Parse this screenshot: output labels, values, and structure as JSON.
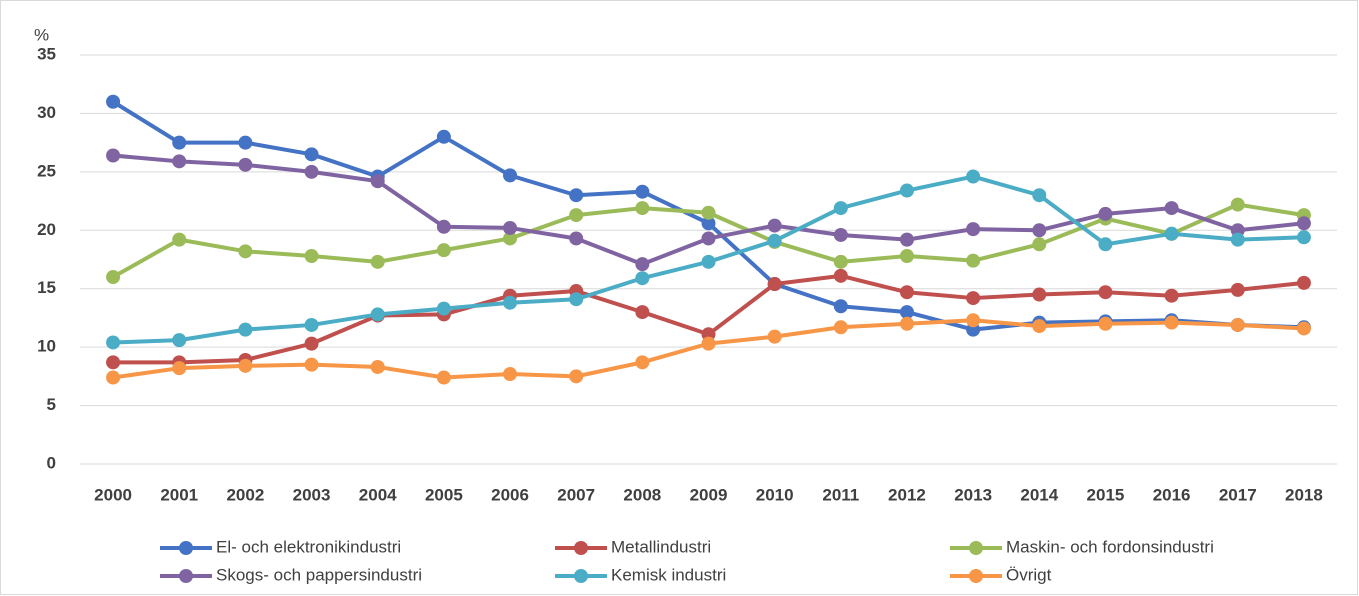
{
  "chart_data": {
    "type": "line",
    "y_label": "%",
    "categories": [
      "2000",
      "2001",
      "2002",
      "2003",
      "2004",
      "2005",
      "2006",
      "2007",
      "2008",
      "2009",
      "2010",
      "2011",
      "2012",
      "2013",
      "2014",
      "2015",
      "2016",
      "2017",
      "2018"
    ],
    "series": [
      {
        "name": "El- och elektronikindustri",
        "color": "#4472c4",
        "values": [
          31.0,
          27.5,
          27.5,
          26.5,
          24.6,
          28.0,
          24.7,
          23.0,
          23.3,
          20.6,
          15.4,
          13.5,
          13.0,
          11.5,
          12.1,
          12.2,
          12.3,
          11.9,
          11.7
        ]
      },
      {
        "name": "Metallindustri",
        "color": "#c0504d",
        "values": [
          8.7,
          8.7,
          8.9,
          10.3,
          12.7,
          12.8,
          14.4,
          14.8,
          13.0,
          11.1,
          15.4,
          16.1,
          14.7,
          14.2,
          14.5,
          14.7,
          14.4,
          14.9,
          15.5
        ]
      },
      {
        "name": "Maskin- och fordonsindustri",
        "color": "#9bbb59",
        "values": [
          16.0,
          19.2,
          18.2,
          17.8,
          17.3,
          18.3,
          19.3,
          21.3,
          21.9,
          21.5,
          19.0,
          17.3,
          17.8,
          17.4,
          18.8,
          21.0,
          19.7,
          22.2,
          21.3
        ]
      },
      {
        "name": "Skogs- och pappersindustri",
        "color": "#8064a2",
        "values": [
          26.4,
          25.9,
          25.6,
          25.0,
          24.2,
          20.3,
          20.2,
          19.3,
          17.1,
          19.3,
          20.4,
          19.6,
          19.2,
          20.1,
          20.0,
          21.4,
          21.9,
          20.0,
          20.6
        ]
      },
      {
        "name": "Kemisk industri",
        "color": "#4bacc6",
        "values": [
          10.4,
          10.6,
          11.5,
          11.9,
          12.8,
          13.3,
          13.8,
          14.1,
          15.9,
          17.3,
          19.1,
          21.9,
          23.4,
          24.6,
          23.0,
          18.8,
          19.7,
          19.2,
          19.4
        ]
      },
      {
        "name": "Övrigt",
        "color": "#f79646",
        "values": [
          7.4,
          8.2,
          8.4,
          8.5,
          8.3,
          7.4,
          7.7,
          7.5,
          8.7,
          10.3,
          10.9,
          11.7,
          12.0,
          12.3,
          11.8,
          12.0,
          12.1,
          11.9,
          11.6
        ]
      }
    ],
    "ylim": [
      0,
      35
    ],
    "yticks": [
      0,
      5,
      10,
      15,
      20,
      25,
      30,
      35
    ],
    "grid": true
  }
}
